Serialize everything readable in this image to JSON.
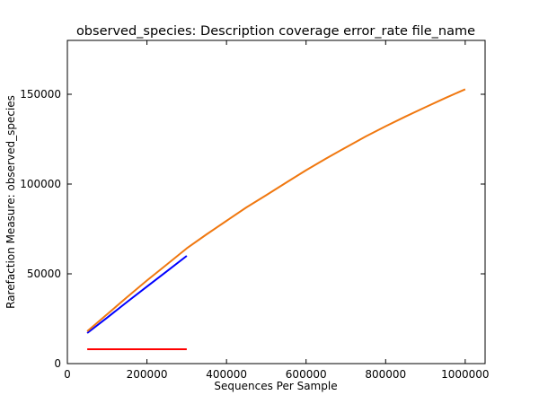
{
  "chart_data": {
    "type": "line",
    "title": "observed_species: Description coverage  error_rate  file_name",
    "xlabel": "Sequences Per Sample",
    "ylabel": "Rarefaction Measure: observed_species",
    "xlim": [
      0,
      1050000
    ],
    "ylim": [
      0,
      180000
    ],
    "x_ticks": [
      0,
      200000,
      400000,
      600000,
      800000,
      1000000
    ],
    "x_tick_labels": [
      "0",
      "200000",
      "400000",
      "600000",
      "800000",
      "1000000"
    ],
    "y_ticks": [
      0,
      50000,
      100000,
      150000
    ],
    "y_tick_labels": [
      "0",
      "50000",
      "100000",
      "150000"
    ],
    "grid": false,
    "series": [
      {
        "color": "#ff0000",
        "x": [
          50000,
          100000,
          150000,
          200000,
          250000,
          300000
        ],
        "y": [
          8000,
          8000,
          8000,
          8000,
          8000,
          8000
        ]
      },
      {
        "color": "#0000ff",
        "x": [
          50000,
          100000,
          150000,
          200000,
          250000,
          300000
        ],
        "y": [
          17000,
          25600,
          34300,
          42900,
          51400,
          60000
        ]
      },
      {
        "color": "#f07810",
        "x": [
          50000,
          100000,
          150000,
          200000,
          250000,
          300000,
          350000,
          400000,
          450000,
          500000,
          550000,
          600000,
          650000,
          700000,
          750000,
          800000,
          850000,
          900000,
          950000,
          1000000
        ],
        "y": [
          18000,
          27500,
          37000,
          46300,
          55200,
          64200,
          72000,
          79500,
          87000,
          93800,
          100800,
          107700,
          114200,
          120400,
          126500,
          132200,
          137600,
          142800,
          147900,
          152800
        ]
      }
    ]
  }
}
